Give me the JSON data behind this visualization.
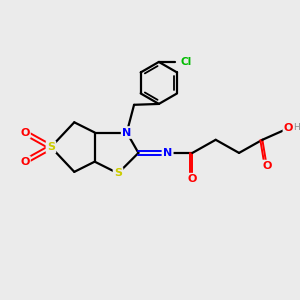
{
  "background_color": "#ebebeb",
  "atom_colors": {
    "S": "#cccc00",
    "N": "#0000ff",
    "O": "#ff0000",
    "Cl": "#00bb00",
    "C": "#000000",
    "H": "#888888"
  },
  "figsize": [
    3.0,
    3.0
  ],
  "dpi": 100
}
